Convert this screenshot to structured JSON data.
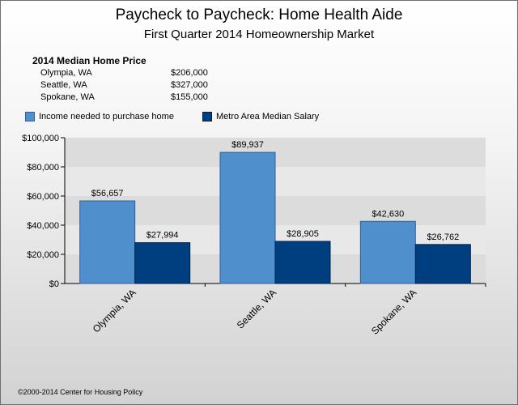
{
  "title": "Paycheck to Paycheck: Home Health Aide",
  "subtitle": "First Quarter 2014 Homeownership Market",
  "prices": {
    "heading": "2014 Median Home Price",
    "rows": [
      {
        "city": "Olympia, WA",
        "price": "$206,000"
      },
      {
        "city": "Seattle, WA",
        "price": "$327,000"
      },
      {
        "city": "Spokane, WA",
        "price": "$155,000"
      }
    ]
  },
  "footer": "©2000-2014 Center for Housing Policy",
  "colors": {
    "income_needed": "#4f8fcb",
    "median_salary": "#003f7f"
  },
  "chart_data": {
    "type": "bar",
    "categories": [
      "Olympia, WA",
      "Seattle, WA",
      "Spokane, WA"
    ],
    "series": [
      {
        "name": "Income needed to purchase home",
        "values": [
          56657,
          89937,
          42630
        ],
        "labels": [
          "$56,657",
          "$89,937",
          "$42,630"
        ]
      },
      {
        "name": "Metro Area Median Salary",
        "values": [
          27994,
          28905,
          26762
        ],
        "labels": [
          "$27,994",
          "$28,905",
          "$26,762"
        ]
      }
    ],
    "yticks": [
      0,
      20000,
      40000,
      60000,
      80000,
      100000
    ],
    "ytick_labels": [
      "$0",
      "$20,000",
      "$40,000",
      "$60,000",
      "$80,000",
      "$100,000"
    ],
    "ylim": [
      0,
      100000
    ],
    "legend_position": "top-left"
  }
}
